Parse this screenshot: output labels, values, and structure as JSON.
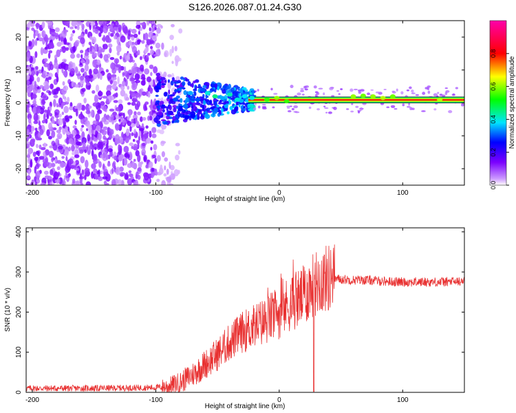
{
  "title": "S126.2026.087.01.24.G30",
  "chart_data": [
    {
      "type": "heatmap",
      "xlabel": "Height of straight line (km)",
      "ylabel": "Frequency (Hz)",
      "xlim": [
        -205,
        150
      ],
      "ylim": [
        -25,
        25
      ],
      "xticks": [
        -200,
        -100,
        0,
        100
      ],
      "yticks": [
        -20,
        -10,
        0,
        10,
        20
      ],
      "colorbar": {
        "label": "Normalized spectral amplitude",
        "range": [
          0,
          1
        ],
        "ticks": [
          "0.0",
          "0.2",
          "0.4",
          "0.6",
          "0.8"
        ],
        "tick_values": [
          0.0,
          0.2,
          0.4,
          0.6,
          0.8
        ]
      },
      "carrier_band": {
        "x_start": -25,
        "x_end": 150,
        "freq_low": 0,
        "freq_high": 1.8
      },
      "blobs": [
        {
          "x": -72,
          "y": 3,
          "v": 0.35
        },
        {
          "x": -66,
          "y": 1,
          "v": 0.3
        },
        {
          "x": -58,
          "y": 3,
          "v": 0.4
        },
        {
          "x": -52,
          "y": 2,
          "v": 0.45
        },
        {
          "x": -46,
          "y": 1.5,
          "v": 0.35
        },
        {
          "x": -40,
          "y": 2.5,
          "v": 0.42
        },
        {
          "x": -34,
          "y": 1,
          "v": 0.4
        },
        {
          "x": -28,
          "y": 2,
          "v": 0.38
        },
        {
          "x": -22,
          "y": 1.5,
          "v": 0.4
        },
        {
          "x": -80,
          "y": -2,
          "v": 0.25
        },
        {
          "x": -88,
          "y": -3,
          "v": 0.22
        },
        {
          "x": -84,
          "y": 1,
          "v": 0.3
        },
        {
          "x": -76,
          "y": -1,
          "v": 0.32
        },
        {
          "x": -62,
          "y": 4,
          "v": 0.3
        },
        {
          "x": -70,
          "y": -4,
          "v": 0.26
        },
        {
          "x": -10,
          "y": 1,
          "v": 0.55
        },
        {
          "x": -2,
          "y": 1.5,
          "v": 0.6
        },
        {
          "x": 6,
          "y": 0.5,
          "v": 0.55
        },
        {
          "x": 60,
          "y": 2,
          "v": 0.6
        },
        {
          "x": 68,
          "y": 2.2,
          "v": 0.58
        },
        {
          "x": 76,
          "y": 2,
          "v": 0.6
        },
        {
          "x": 84,
          "y": 1.5,
          "v": 0.62
        },
        {
          "x": 92,
          "y": 2,
          "v": 0.58
        },
        {
          "x": 130,
          "y": 1,
          "v": 0.62
        }
      ]
    },
    {
      "type": "line",
      "xlabel": "Height of straight line (km)",
      "ylabel": "SNR (10 * v/v)",
      "xlim": [
        -205,
        150
      ],
      "ylim": [
        0,
        410
      ],
      "xticks": [
        -200,
        -100,
        0,
        100
      ],
      "yticks": [
        0,
        100,
        200,
        300,
        400
      ],
      "series": [
        {
          "name": "SNR",
          "color": "#e83030",
          "x": [
            -205,
            -150,
            -100,
            -90,
            -80,
            -70,
            -60,
            -50,
            -40,
            -30,
            -20,
            -10,
            0,
            10,
            20,
            25,
            30,
            40,
            50,
            60,
            70,
            80,
            90,
            100,
            110,
            120,
            130,
            140,
            150
          ],
          "y": [
            10,
            10,
            12,
            15,
            25,
            45,
            70,
            95,
            125,
            150,
            165,
            180,
            200,
            225,
            240,
            260,
            275,
            285,
            282,
            280,
            280,
            278,
            276,
            275,
            275,
            275,
            275,
            276,
            276
          ]
        }
      ]
    }
  ]
}
